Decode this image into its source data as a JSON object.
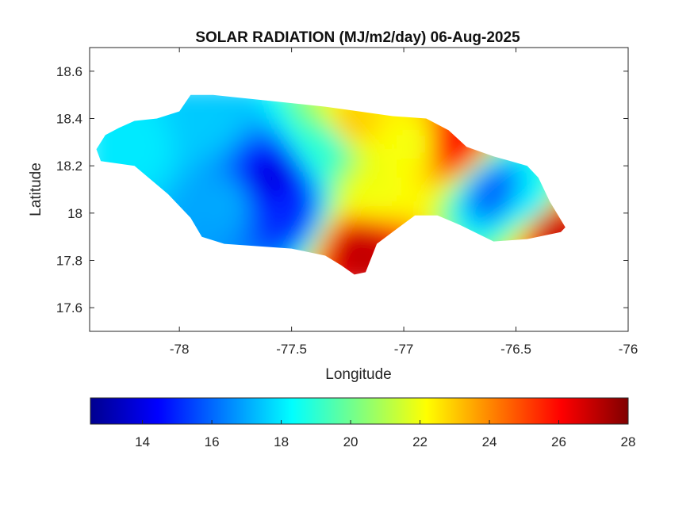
{
  "chart_data": {
    "type": "heatmap",
    "title": "SOLAR RADIATION (MJ/m2/day) 06-Aug-2025",
    "xlabel": "Longitude",
    "ylabel": "Latitude",
    "xlim": [
      -78.4,
      -76
    ],
    "ylim": [
      17.5,
      18.7
    ],
    "xticks": [
      -78,
      -77.5,
      -77,
      -76.5,
      -76
    ],
    "xtick_labels": [
      "-78",
      "-77.5",
      "-77",
      "-76.5",
      "-76"
    ],
    "yticks": [
      17.6,
      17.8,
      18,
      18.2,
      18.4,
      18.6
    ],
    "ytick_labels": [
      "17.6",
      "17.8",
      "18",
      "18.2",
      "18.4",
      "18.6"
    ],
    "grid": false,
    "colormap": "jet",
    "colorbar": {
      "orientation": "horizontal",
      "position": "below",
      "range": [
        12.5,
        28
      ],
      "ticks": [
        14,
        16,
        18,
        20,
        22,
        24,
        26,
        28
      ],
      "tick_labels": [
        "14",
        "16",
        "18",
        "20",
        "22",
        "24",
        "26",
        "28"
      ]
    },
    "region_outline": [
      [
        -78.37,
        18.27
      ],
      [
        -78.33,
        18.33
      ],
      [
        -78.27,
        18.36
      ],
      [
        -78.2,
        18.39
      ],
      [
        -78.1,
        18.4
      ],
      [
        -78.0,
        18.43
      ],
      [
        -77.95,
        18.5
      ],
      [
        -77.85,
        18.5
      ],
      [
        -77.75,
        18.49
      ],
      [
        -77.55,
        18.47
      ],
      [
        -77.35,
        18.45
      ],
      [
        -77.2,
        18.43
      ],
      [
        -77.05,
        18.41
      ],
      [
        -76.9,
        18.4
      ],
      [
        -76.8,
        18.35
      ],
      [
        -76.72,
        18.28
      ],
      [
        -76.6,
        18.24
      ],
      [
        -76.45,
        18.2
      ],
      [
        -76.4,
        18.15
      ],
      [
        -76.35,
        18.05
      ],
      [
        -76.28,
        17.94
      ],
      [
        -76.3,
        17.92
      ],
      [
        -76.45,
        17.89
      ],
      [
        -76.6,
        17.88
      ],
      [
        -76.75,
        17.95
      ],
      [
        -76.85,
        17.99
      ],
      [
        -76.95,
        17.99
      ],
      [
        -77.05,
        17.92
      ],
      [
        -77.12,
        17.87
      ],
      [
        -77.17,
        17.75
      ],
      [
        -77.22,
        17.74
      ],
      [
        -77.28,
        17.78
      ],
      [
        -77.35,
        17.82
      ],
      [
        -77.5,
        17.85
      ],
      [
        -77.65,
        17.86
      ],
      [
        -77.8,
        17.87
      ],
      [
        -77.9,
        17.9
      ],
      [
        -77.95,
        17.98
      ],
      [
        -78.05,
        18.08
      ],
      [
        -78.2,
        18.2
      ],
      [
        -78.35,
        18.22
      ]
    ],
    "value_field_estimate": [
      {
        "lon": -78.2,
        "lat": 18.3,
        "value": 18
      },
      {
        "lon": -77.9,
        "lat": 18.4,
        "value": 17.5
      },
      {
        "lon": -77.6,
        "lat": 18.15,
        "value": 14
      },
      {
        "lon": -77.55,
        "lat": 18.02,
        "value": 15
      },
      {
        "lon": -77.8,
        "lat": 18.05,
        "value": 17
      },
      {
        "lon": -77.35,
        "lat": 18.3,
        "value": 19
      },
      {
        "lon": -77.25,
        "lat": 18.38,
        "value": 23
      },
      {
        "lon": -77.2,
        "lat": 17.85,
        "value": 27
      },
      {
        "lon": -77.15,
        "lat": 18.1,
        "value": 22
      },
      {
        "lon": -76.95,
        "lat": 18.3,
        "value": 22
      },
      {
        "lon": -76.8,
        "lat": 18.3,
        "value": 26
      },
      {
        "lon": -76.6,
        "lat": 18.1,
        "value": 16
      },
      {
        "lon": -76.45,
        "lat": 18.05,
        "value": 18
      },
      {
        "lon": -76.35,
        "lat": 17.95,
        "value": 27
      }
    ]
  },
  "colors": {
    "axes_line": "#262626",
    "background": "#ffffff"
  }
}
